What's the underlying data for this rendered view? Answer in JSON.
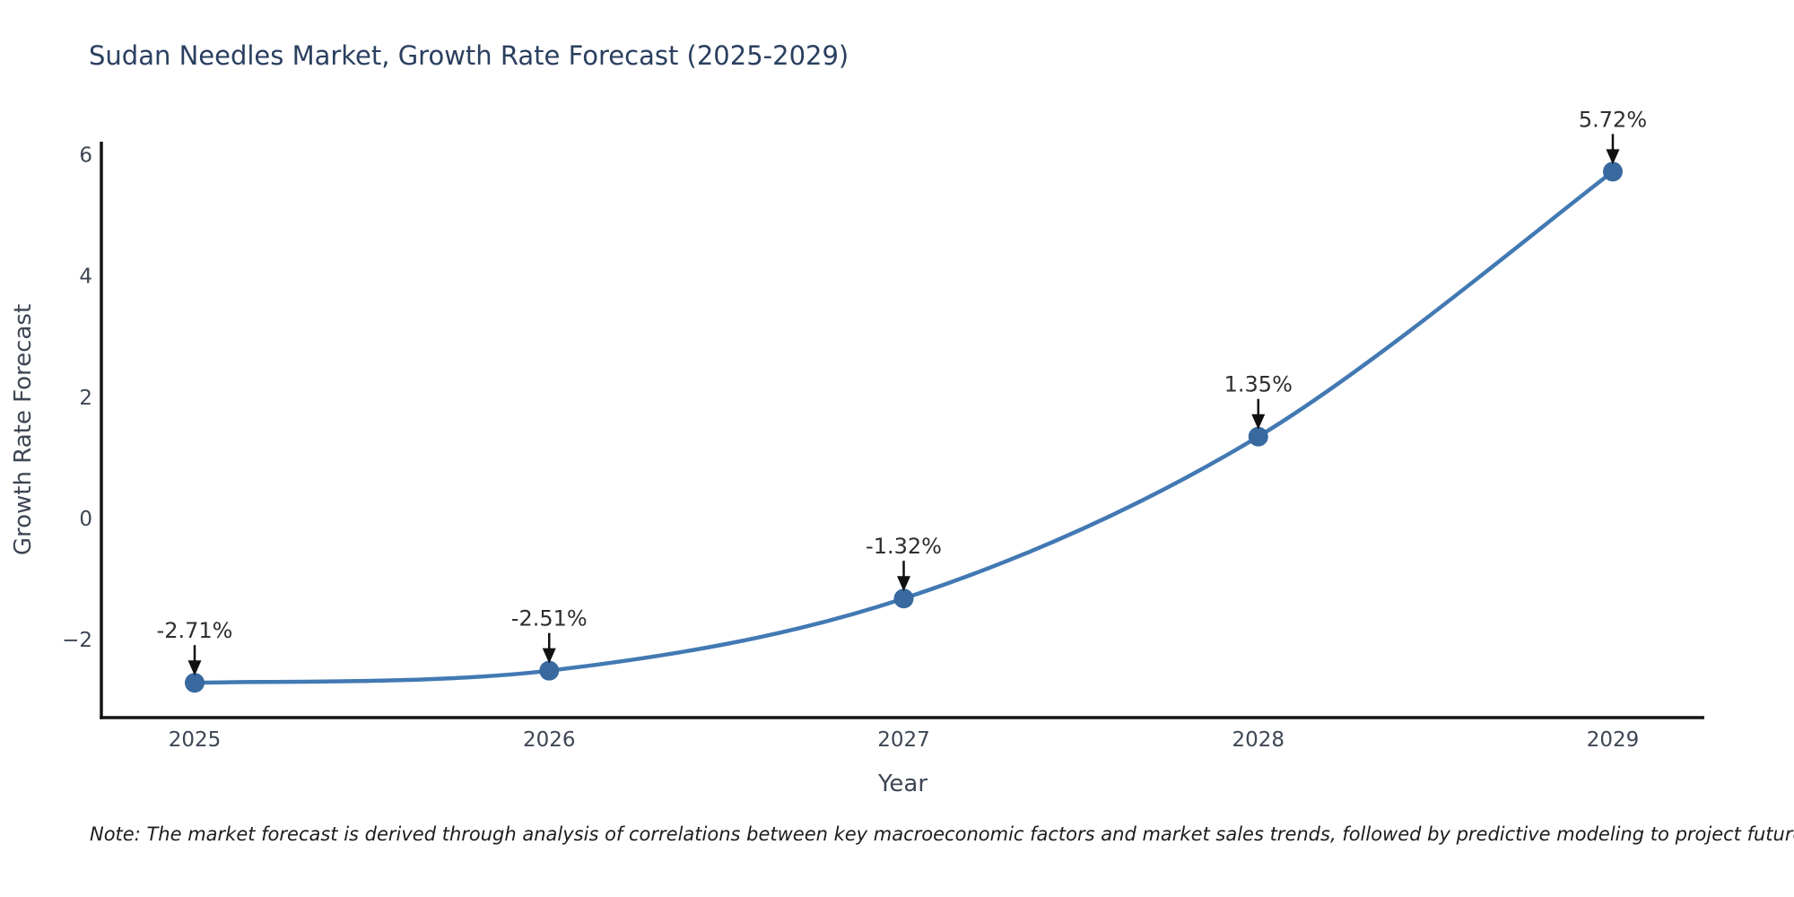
{
  "chart_data": {
    "type": "line",
    "title": "Sudan Needles Market, Growth Rate Forecast (2025-2029)",
    "xlabel": "Year",
    "ylabel": "Growth Rate Forecast",
    "x": [
      2025,
      2026,
      2027,
      2028,
      2029
    ],
    "series": [
      {
        "name": "Growth Rate Forecast",
        "values": [
          -2.71,
          -2.51,
          -1.32,
          1.35,
          5.72
        ]
      }
    ],
    "point_labels": [
      "-2.71%",
      "-2.51%",
      "-1.32%",
      "1.35%",
      "5.72%"
    ],
    "xtick_labels": [
      "2025",
      "2026",
      "2027",
      "2028",
      "2029"
    ],
    "ytick_values": [
      -2,
      0,
      2,
      4,
      6
    ],
    "ytick_labels": [
      "−2",
      "0",
      "2",
      "4",
      "6"
    ],
    "ylim": [
      -3.3,
      6.5
    ],
    "grid": false,
    "legend": "none",
    "line_shape": "spline",
    "marker": "circle",
    "annotation_arrows": "down",
    "colors": {
      "line": "#4279b3",
      "marker": "#38699f",
      "annotation_text": "#2e2e2e",
      "arrow": "#111111",
      "title": "#2a3f5f",
      "tick_label": "#3d4654",
      "axis_label": "#3d4654",
      "spine": "#141414",
      "note_text": "#1c1c1c",
      "background": "#ffffff"
    },
    "note": "Note: The market forecast is derived through analysis of correlations between key macroeconomic factors and market sales trends, followed by predictive modeling to project future sales"
  }
}
